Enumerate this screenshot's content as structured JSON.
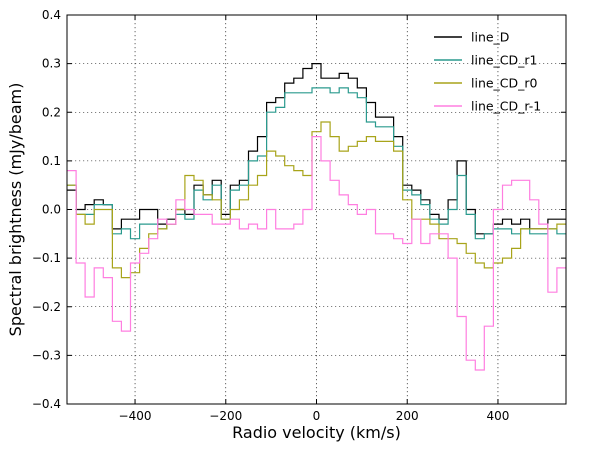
{
  "chart_data": {
    "type": "line",
    "step": true,
    "title": "",
    "xlabel": "Radio velocity (km/s)",
    "ylabel": "Spectral brightness (mJy/beam)",
    "xlim": [
      -550,
      550
    ],
    "ylim": [
      -0.4,
      0.4
    ],
    "xticks": [
      -400,
      -200,
      0,
      200,
      400
    ],
    "yticks": [
      -0.4,
      -0.3,
      -0.2,
      -0.1,
      0.0,
      0.1,
      0.2,
      0.3,
      0.4
    ],
    "xtick_labels": [
      "−400",
      "−200",
      "0",
      "200",
      "400"
    ],
    "ytick_labels": [
      "−0.4",
      "−0.3",
      "−0.2",
      "−0.1",
      "0.0",
      "0.1",
      "0.2",
      "0.3",
      "0.4"
    ],
    "grid": true,
    "legend_position": "top-right",
    "bin_edges": [
      -550,
      -530,
      -510,
      -490,
      -470,
      -450,
      -430,
      -410,
      -390,
      -370,
      -350,
      -330,
      -310,
      -290,
      -270,
      -250,
      -230,
      -210,
      -190,
      -170,
      -150,
      -130,
      -110,
      -90,
      -70,
      -50,
      -30,
      -10,
      10,
      30,
      50,
      70,
      90,
      110,
      130,
      150,
      170,
      190,
      210,
      230,
      250,
      270,
      290,
      310,
      330,
      350,
      370,
      390,
      410,
      430,
      450,
      470,
      490,
      510,
      530,
      550
    ],
    "series": [
      {
        "name": "line_D",
        "color": "#000000",
        "values": [
          0.04,
          0.0,
          0.01,
          0.02,
          0.01,
          -0.04,
          -0.02,
          -0.02,
          0.0,
          0.0,
          -0.03,
          -0.02,
          0.0,
          -0.01,
          0.05,
          0.03,
          0.06,
          -0.01,
          0.05,
          0.06,
          0.12,
          0.15,
          0.22,
          0.23,
          0.26,
          0.27,
          0.29,
          0.3,
          0.27,
          0.27,
          0.28,
          0.27,
          0.25,
          0.22,
          0.19,
          0.19,
          0.15,
          0.05,
          0.04,
          0.02,
          -0.01,
          -0.02,
          0.02,
          0.1,
          0.0,
          -0.05,
          -0.05,
          -0.03,
          -0.02,
          -0.03,
          -0.02,
          -0.04,
          -0.04,
          -0.02,
          -0.02
        ]
      },
      {
        "name": "line_CD_r1",
        "color": "#2a9a8e",
        "values": [
          0.05,
          -0.01,
          -0.01,
          0.01,
          0.01,
          -0.05,
          -0.04,
          -0.06,
          -0.03,
          -0.03,
          -0.04,
          -0.03,
          -0.01,
          -0.02,
          0.04,
          0.02,
          0.05,
          -0.02,
          0.04,
          0.05,
          0.1,
          0.11,
          0.2,
          0.21,
          0.24,
          0.24,
          0.24,
          0.25,
          0.25,
          0.24,
          0.25,
          0.24,
          0.23,
          0.18,
          0.17,
          0.17,
          0.13,
          0.04,
          0.03,
          0.01,
          -0.02,
          -0.03,
          0.0,
          0.07,
          -0.01,
          -0.06,
          -0.05,
          -0.04,
          -0.04,
          -0.05,
          -0.04,
          -0.05,
          -0.05,
          -0.04,
          -0.05
        ]
      },
      {
        "name": "line_CD_r0",
        "color": "#a8a41a",
        "values": [
          0.05,
          -0.01,
          -0.03,
          0.0,
          0.0,
          -0.12,
          -0.14,
          -0.13,
          -0.08,
          -0.05,
          -0.04,
          -0.03,
          0.0,
          0.07,
          0.06,
          0.03,
          0.02,
          -0.02,
          0.0,
          0.02,
          0.05,
          0.07,
          0.12,
          0.11,
          0.09,
          0.08,
          0.07,
          0.16,
          0.18,
          0.15,
          0.12,
          0.13,
          0.14,
          0.15,
          0.14,
          0.14,
          0.12,
          0.02,
          -0.02,
          -0.02,
          -0.03,
          -0.06,
          -0.06,
          -0.07,
          -0.09,
          -0.11,
          -0.12,
          -0.11,
          -0.1,
          -0.08,
          -0.04,
          -0.04,
          -0.04,
          -0.04,
          -0.03
        ]
      },
      {
        "name": "line_CD_r-1",
        "color": "#ff7ee0",
        "values": [
          0.08,
          -0.11,
          -0.18,
          -0.12,
          -0.14,
          -0.23,
          -0.25,
          -0.11,
          -0.09,
          -0.06,
          -0.02,
          -0.03,
          0.02,
          0.0,
          -0.01,
          -0.01,
          -0.03,
          -0.03,
          -0.02,
          -0.04,
          -0.03,
          -0.04,
          0.0,
          -0.04,
          -0.04,
          -0.03,
          0.0,
          0.15,
          0.1,
          0.06,
          0.03,
          0.01,
          -0.01,
          0.0,
          -0.05,
          -0.05,
          -0.06,
          -0.07,
          -0.02,
          -0.07,
          -0.05,
          -0.05,
          -0.1,
          -0.22,
          -0.31,
          -0.33,
          -0.24,
          0.0,
          0.05,
          0.06,
          0.06,
          0.02,
          -0.03,
          -0.17,
          -0.12
        ]
      }
    ]
  }
}
